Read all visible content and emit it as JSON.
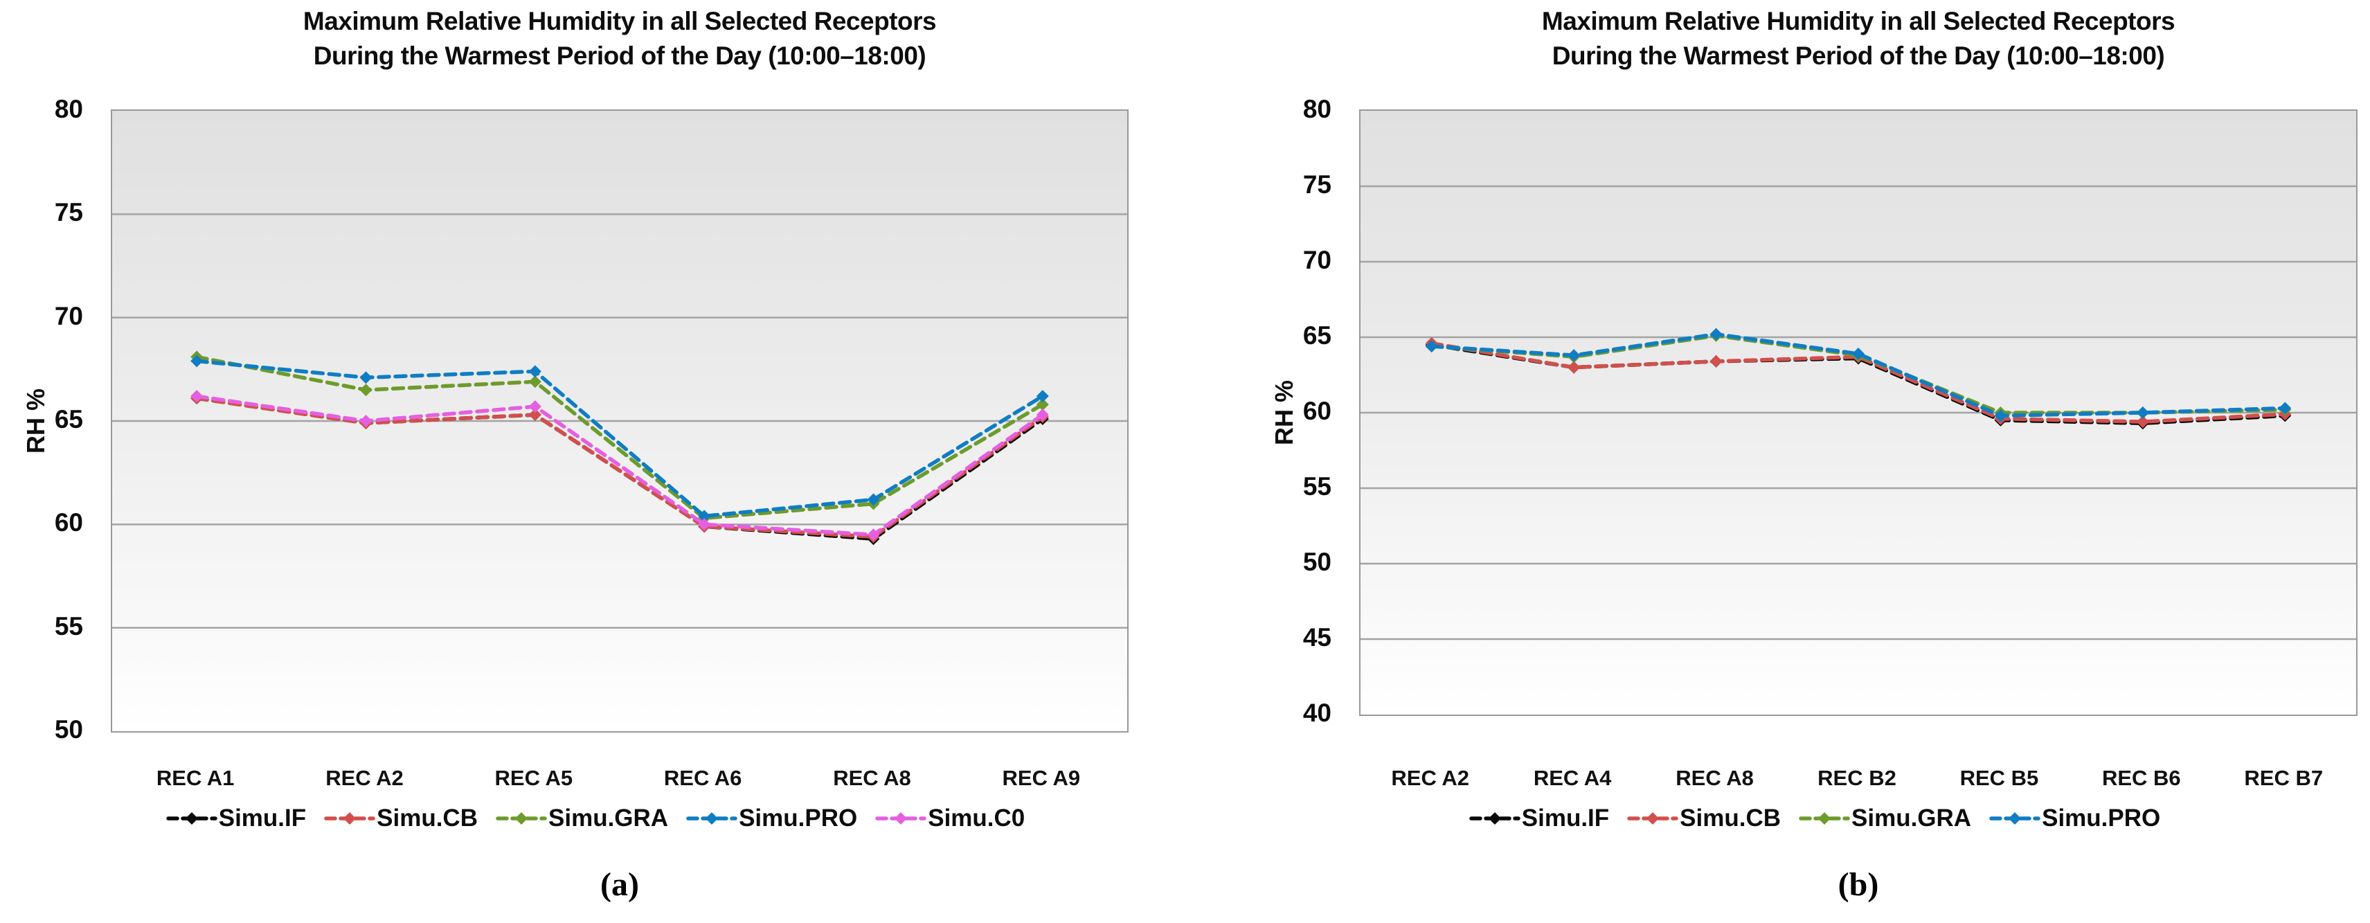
{
  "chart_data": [
    {
      "type": "line",
      "panel": "a",
      "title": "Maximum Relative Humidity in all Selected Receptors\nDuring the Warmest Period of the Day (10:00–18:00)",
      "ylabel": "RH %",
      "xlabel": "",
      "sublabel": "(a)",
      "ylim": [
        50,
        80
      ],
      "ytick_step": 5,
      "ytick_labels": [
        "80",
        "75",
        "70",
        "65",
        "60",
        "55",
        "50"
      ],
      "grid": "horizontal",
      "legend_position": "bottom",
      "line_style": "dashed",
      "marker": "diamond",
      "categories": [
        "REC A1",
        "REC A2",
        "REC A5",
        "REC A6",
        "REC A8",
        "REC A9"
      ],
      "series": [
        {
          "name": "Simu.IF",
          "color": "#0a0a0a",
          "values": [
            66.1,
            64.9,
            65.3,
            59.9,
            59.3,
            65.1
          ]
        },
        {
          "name": "Simu.CB",
          "color": "#d24f4c",
          "values": [
            66.1,
            64.9,
            65.3,
            59.9,
            59.4,
            65.2
          ]
        },
        {
          "name": "Simu.GRA",
          "color": "#6d9b2c",
          "values": [
            68.1,
            66.5,
            66.9,
            60.3,
            61.0,
            65.8
          ]
        },
        {
          "name": "Simu.PRO",
          "color": "#0f7dc4",
          "values": [
            67.9,
            67.1,
            67.4,
            60.4,
            61.2,
            66.2
          ]
        },
        {
          "name": "Simu.C0",
          "color": "#e55fe0",
          "values": [
            66.2,
            65.0,
            65.7,
            60.0,
            59.5,
            65.3
          ]
        }
      ]
    },
    {
      "type": "line",
      "panel": "b",
      "title": "Maximum Relative Humidity in all Selected Receptors\nDuring the Warmest Period of the Day (10:00–18:00)",
      "ylabel": "RH %",
      "xlabel": "",
      "sublabel": "(b)",
      "ylim": [
        40,
        80
      ],
      "ytick_step": 5,
      "ytick_labels": [
        "80",
        "75",
        "70",
        "65",
        "60",
        "55",
        "50",
        "45",
        "40"
      ],
      "grid": "horizontal",
      "legend_position": "bottom",
      "line_style": "dashed",
      "marker": "diamond",
      "categories": [
        "REC A2",
        "REC A4",
        "REC A8",
        "REC B2",
        "REC B5",
        "REC B6",
        "REC B7"
      ],
      "series": [
        {
          "name": "Simu.IF",
          "color": "#0a0a0a",
          "values": [
            64.5,
            63.0,
            63.4,
            63.6,
            59.5,
            59.3,
            59.8
          ]
        },
        {
          "name": "Simu.CB",
          "color": "#d24f4c",
          "values": [
            64.6,
            63.0,
            63.4,
            63.7,
            59.6,
            59.4,
            59.9
          ]
        },
        {
          "name": "Simu.GRA",
          "color": "#6d9b2c",
          "values": [
            64.4,
            63.7,
            65.1,
            63.8,
            60.0,
            60.0,
            60.2
          ]
        },
        {
          "name": "Simu.PRO",
          "color": "#0f7dc4",
          "values": [
            64.4,
            63.8,
            65.2,
            63.9,
            59.8,
            60.0,
            60.3
          ]
        }
      ]
    }
  ]
}
